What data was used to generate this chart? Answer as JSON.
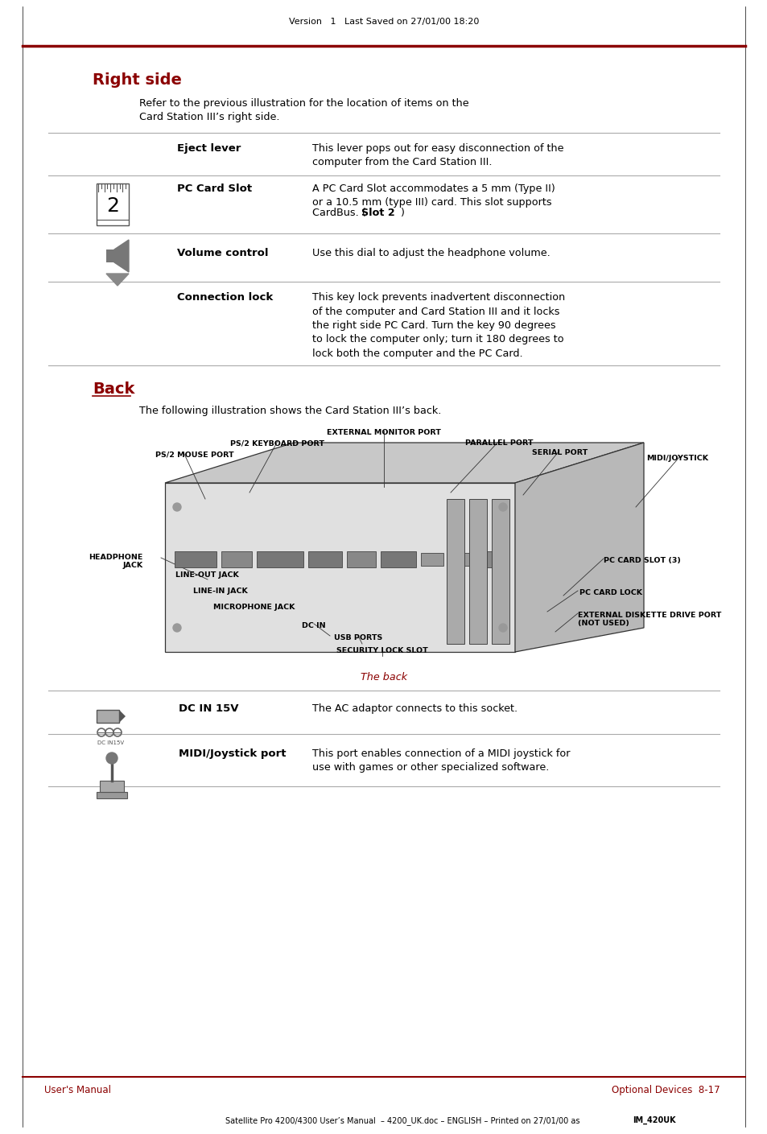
{
  "bg_color": "#ffffff",
  "top_header": "Version   1   Last Saved on 27/01/00 18:20",
  "footer_left": "User's Manual",
  "footer_right": "Optional Devices  8-17",
  "footer_bottom": "Satellite Pro 4200/4300 User’s Manual  – 4200_UK.doc – ENGLISH – Printed on 27/01/00 as ",
  "footer_bottom_bold": "IM_420UK",
  "red_color": "#8B0000",
  "divider_gray": "#aaaaaa",
  "light_gray": "#cccccc",
  "section1_title": "Right side",
  "section1_intro": "Refer to the previous illustration for the location of items on the\nCard Station III’s right side.",
  "row1_label": "Eject lever",
  "row1_desc": "This lever pops out for easy disconnection of the\ncomputer from the Card Station III.",
  "row2_label": "PC Card Slot",
  "row2_desc_line1": "A PC Card Slot accommodates a 5 mm (Type II)",
  "row2_desc_line2": "or a 10.5 mm (type III) card. This slot supports",
  "row2_desc_line3_pre": "CardBus. (",
  "row2_desc_line3_bold": "Slot 2",
  "row2_desc_line3_post": ")",
  "row3_label": "Volume control",
  "row3_desc": "Use this dial to adjust the headphone volume.",
  "row4_label": "Connection lock",
  "row4_desc": "This key lock prevents inadvertent disconnection\nof the computer and Card Station III and it locks\nthe right side PC Card. Turn the key 90 degrees\nto lock the computer only; turn it 180 degrees to\nlock both the computer and the PC Card.",
  "section2_title": "Back",
  "section2_intro": "The following illustration shows the Card Station III’s back.",
  "diagram_caption": "The back",
  "b1_label": "DC IN 15V",
  "b1_desc": "The AC adaptor connects to this socket.",
  "b2_label": "MIDI/Joystick port",
  "b2_desc": "This port enables connection of a MIDI joystick for\nuse with games or other specialized software."
}
